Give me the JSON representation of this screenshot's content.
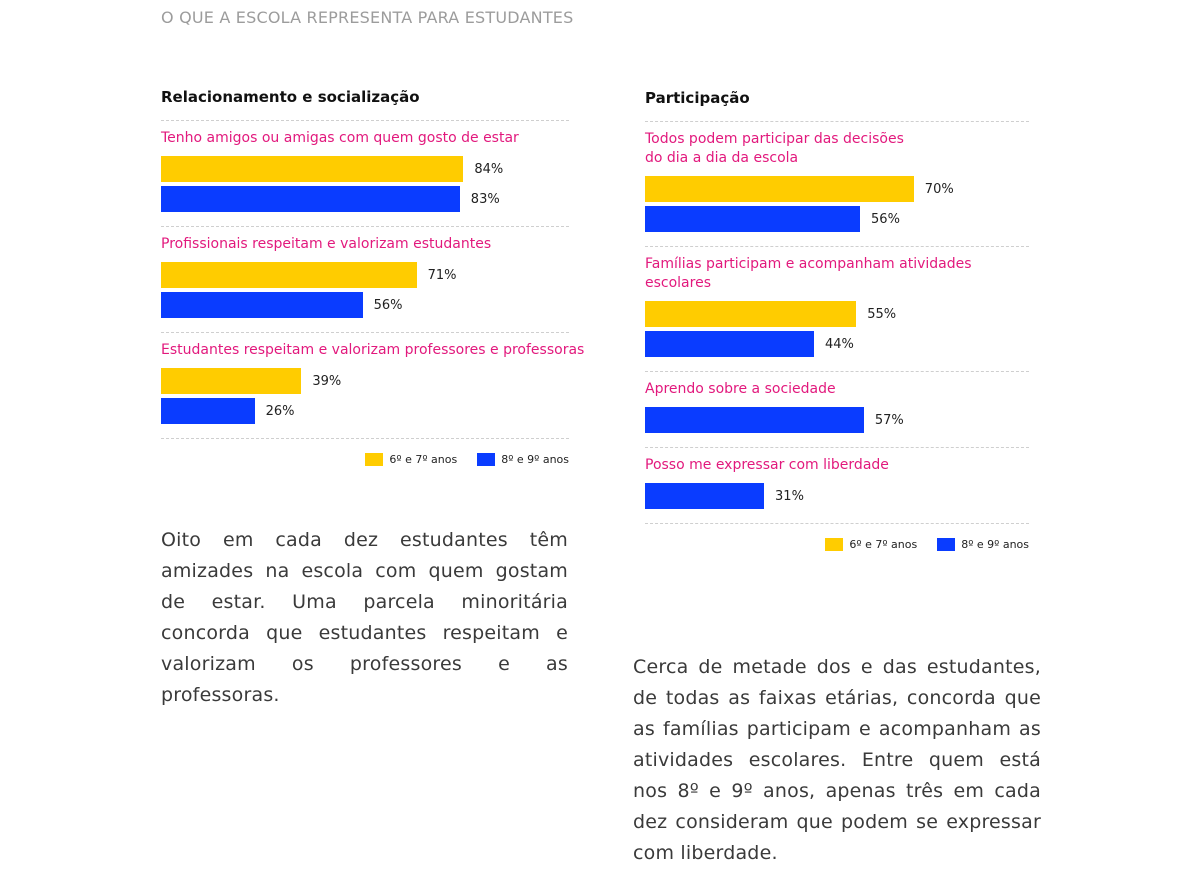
{
  "header": {
    "title": "O QUE A ESCOLA REPRESENTA PARA ESTUDANTES"
  },
  "colors": {
    "yellow": "#FFCC00",
    "blue": "#0A3CFF",
    "pink": "#E2197D"
  },
  "chart_data": [
    {
      "type": "bar",
      "orientation": "horizontal",
      "title": "Relacionamento e socialização",
      "unit": "%",
      "xlim": [
        0,
        100
      ],
      "categories": [
        "Tenho amigos ou amigas com quem gosto de estar",
        "Profissionais respeitam e valorizam estudantes",
        "Estudantes respeitam e valorizam professores e professoras"
      ],
      "series": [
        {
          "name": "6º e 7º anos",
          "color": "#FFCC00",
          "values": [
            84,
            71,
            39
          ]
        },
        {
          "name": "8º e 9º anos",
          "color": "#0A3CFF",
          "values": [
            83,
            56,
            26
          ]
        }
      ],
      "legend": "bottom-right",
      "grid": false
    },
    {
      "type": "bar",
      "orientation": "horizontal",
      "title": "Participação",
      "unit": "%",
      "xlim": [
        0,
        100
      ],
      "categories": [
        "Todos podem participar das decisões\ndo dia a dia da escola",
        "Famílias participam e acompanham atividades\nescolares",
        "Aprendo sobre a sociedade",
        "Posso me expressar com liberdade"
      ],
      "series": [
        {
          "name": "6º e 7º anos",
          "color": "#FFCC00",
          "values": [
            70,
            55,
            null,
            null
          ]
        },
        {
          "name": "8º e 9º anos",
          "color": "#0A3CFF",
          "values": [
            56,
            44,
            57,
            31
          ]
        }
      ],
      "legend": "bottom-right",
      "grid": false
    }
  ],
  "text": {
    "left": "Oito em cada dez estudantes têm amizades na escola com quem gostam de estar. Uma parcela minoritária concorda que estudantes respeitam e valorizam os professores e as professoras.",
    "right": "Cerca de metade dos e das estudantes, de todas as faixas etárias, concorda que as famílias participam e acompanham as atividades escolares. Entre quem está nos 8º e 9º anos, apenas três em cada dez consideram que podem se expressar com liberdade."
  }
}
